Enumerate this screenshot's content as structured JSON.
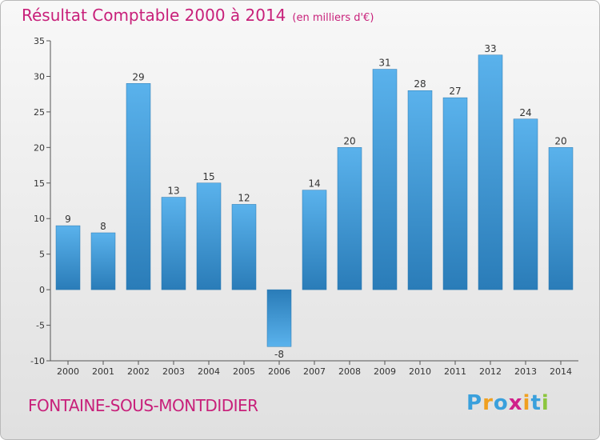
{
  "title": "Résultat Comptable 2000 à 2014",
  "subtitle": "(en milliers d'€)",
  "commune": "FONTAINE-SOUS-MONTDIDIER",
  "logo": {
    "letters": [
      "P",
      "r",
      "o",
      "x",
      "i",
      "t",
      "i"
    ],
    "colors": [
      "#3aa0dc",
      "#f0a020",
      "#3aa0dc",
      "#d0208a",
      "#f0a020",
      "#3aa0dc",
      "#8cc63e"
    ]
  },
  "chart_data": {
    "type": "bar",
    "title": "Résultat Comptable 2000 à 2014",
    "ylabel": "en milliers d'€",
    "xlabel": "",
    "categories": [
      "2000",
      "2001",
      "2002",
      "2003",
      "2004",
      "2005",
      "2006",
      "2007",
      "2008",
      "2009",
      "2010",
      "2011",
      "2012",
      "2013",
      "2014"
    ],
    "values": [
      9,
      8,
      29,
      13,
      15,
      12,
      -8,
      14,
      20,
      31,
      28,
      27,
      33,
      24,
      20
    ],
    "ylim": [
      -10,
      35
    ],
    "yticks": [
      -10,
      -5,
      0,
      5,
      10,
      15,
      20,
      25,
      30,
      35
    ],
    "grid": false,
    "bar_color_top": "#5ab2ec",
    "bar_color_bottom": "#2a7cb8"
  }
}
